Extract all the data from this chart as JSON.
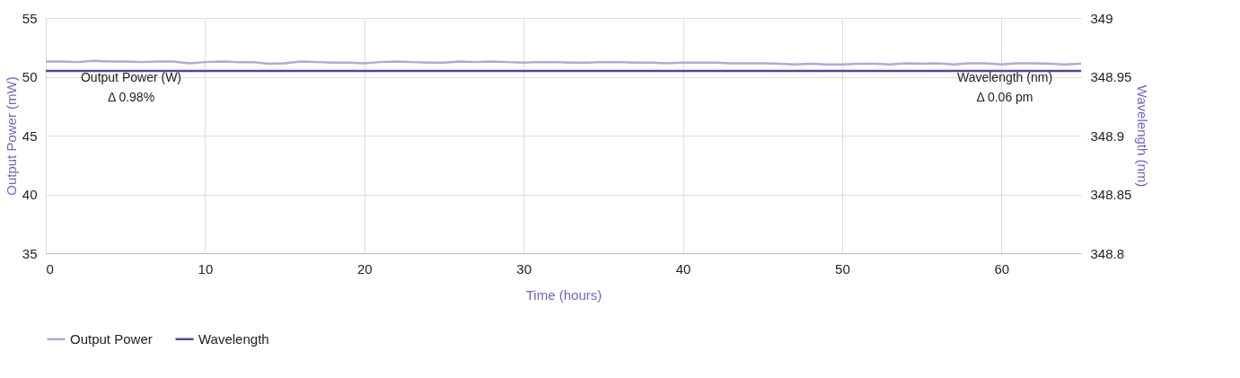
{
  "chart_data": {
    "type": "line",
    "xlabel": "Time (hours)",
    "ylabel": "Output Power (mW)",
    "y2label": "Wavelength (nm)",
    "xlim": [
      0,
      65
    ],
    "xticks": [
      0,
      10,
      20,
      30,
      40,
      50,
      60
    ],
    "ylim": [
      35,
      55
    ],
    "yticks": [
      35,
      40,
      45,
      50,
      55
    ],
    "y2lim": [
      348.8,
      349
    ],
    "y2ticks": [
      348.8,
      348.85,
      348.9,
      348.95,
      349
    ],
    "grid": true,
    "legend": "bottom",
    "annotations": [
      "Output Power (W)\nΔ 0.98%",
      "Wavelength (nm)\nΔ 0.06 pm"
    ],
    "series": [
      {
        "name": "Output Power",
        "color": "#b4a7d6",
        "x": [
          0,
          1,
          2,
          3,
          4,
          5,
          6,
          7,
          8,
          9,
          10,
          11,
          12,
          13,
          14,
          15,
          16,
          17,
          18,
          19,
          20,
          21,
          22,
          23,
          24,
          25,
          26,
          27,
          28,
          29,
          30,
          31,
          32,
          33,
          34,
          35,
          36,
          37,
          38,
          39,
          40,
          41,
          42,
          43,
          44,
          45,
          46,
          47,
          48,
          49,
          50,
          51,
          52,
          53,
          54,
          55,
          56,
          57,
          58,
          59,
          60,
          61,
          62,
          63,
          64,
          65
        ],
        "values": [
          51.3,
          51.3,
          51.25,
          51.35,
          51.3,
          51.3,
          51.25,
          51.3,
          51.3,
          51.15,
          51.25,
          51.3,
          51.25,
          51.25,
          51.1,
          51.15,
          51.3,
          51.25,
          51.2,
          51.2,
          51.15,
          51.25,
          51.3,
          51.25,
          51.2,
          51.2,
          51.3,
          51.25,
          51.3,
          51.25,
          51.2,
          51.25,
          51.25,
          51.2,
          51.2,
          51.25,
          51.25,
          51.2,
          51.2,
          51.15,
          51.2,
          51.2,
          51.2,
          51.15,
          51.15,
          51.15,
          51.1,
          51.05,
          51.1,
          51.05,
          51.05,
          51.1,
          51.1,
          51.05,
          51.15,
          51.1,
          51.15,
          51.05,
          51.15,
          51.15,
          51.05,
          51.15,
          51.15,
          51.1,
          51.05,
          51.1
        ]
      },
      {
        "name": "Wavelength",
        "color": "#5b3fa0",
        "axis": "y2",
        "x": [
          0,
          65
        ],
        "values": [
          348.955,
          348.955
        ]
      }
    ]
  }
}
